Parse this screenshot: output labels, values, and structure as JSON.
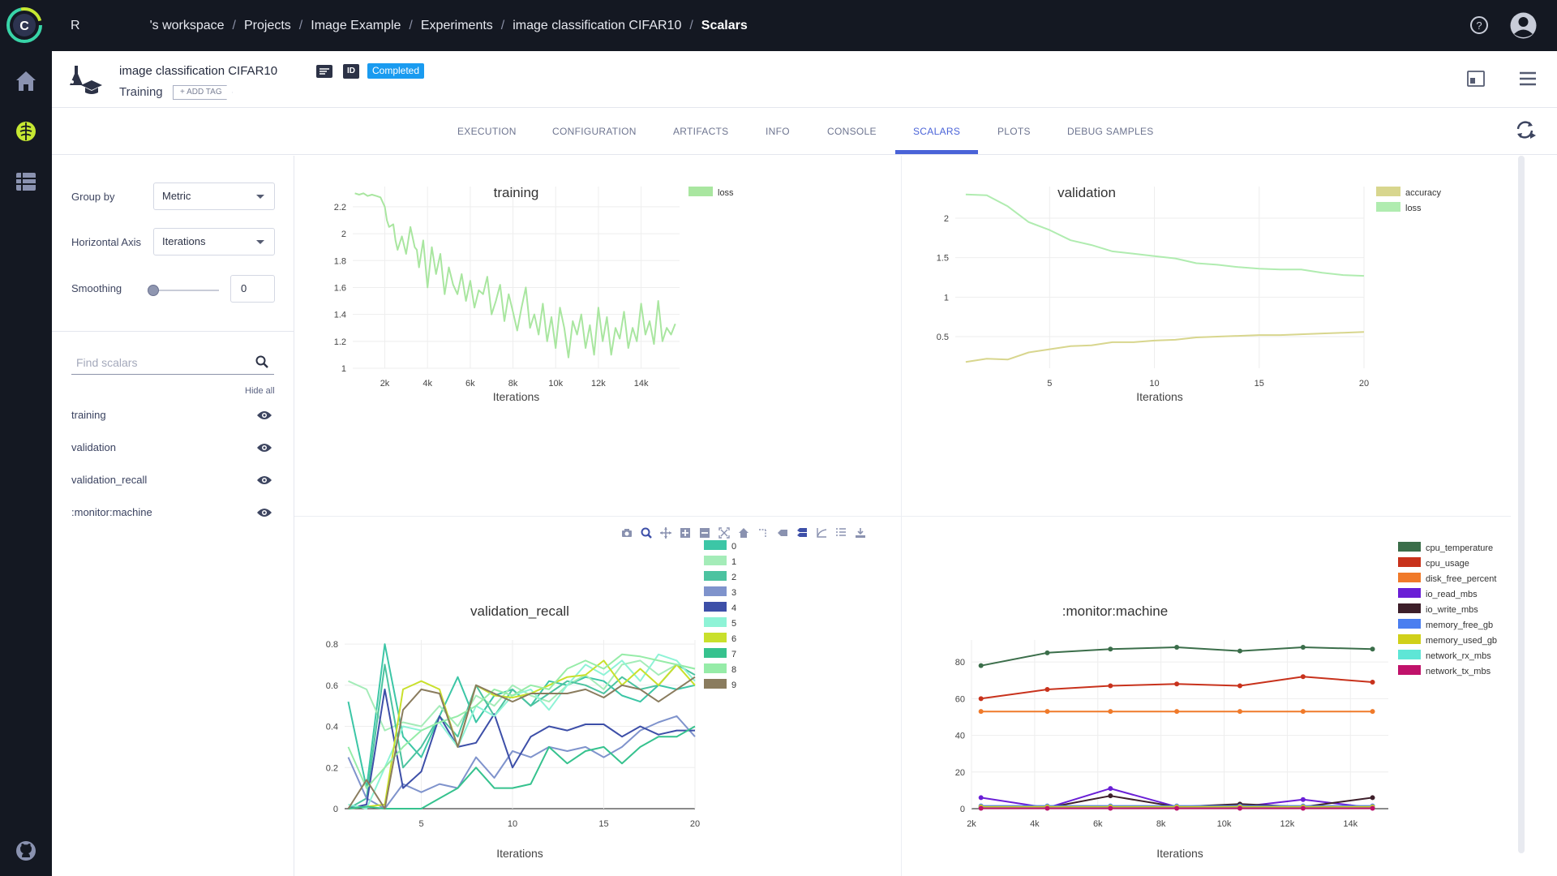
{
  "breadcrumb": {
    "workspace_initial": "R",
    "workspace": "'s workspace",
    "items": [
      "Projects",
      "Image Example",
      "Experiments",
      "image classification CIFAR10"
    ],
    "current": "Scalars"
  },
  "experiment": {
    "title": "image classification CIFAR10",
    "type": "Training",
    "add_tag": "+ ADD TAG",
    "id_label": "ID",
    "status": "Completed"
  },
  "tabs": [
    "EXECUTION",
    "CONFIGURATION",
    "ARTIFACTS",
    "INFO",
    "CONSOLE",
    "SCALARS",
    "PLOTS",
    "DEBUG SAMPLES"
  ],
  "active_tab": "SCALARS",
  "controls": {
    "group_by_label": "Group by",
    "group_by_value": "Metric",
    "horizontal_axis_label": "Horizontal Axis",
    "horizontal_axis_value": "Iterations",
    "smoothing_label": "Smoothing",
    "smoothing_value": "0",
    "smoothing_level": 0,
    "find_placeholder": "Find scalars",
    "hide_all": "Hide all",
    "scalars": [
      "training",
      "validation",
      "validation_recall",
      ":monitor:machine"
    ]
  },
  "colors": {
    "accent": "#4a63d8",
    "status": "#1a9bf0",
    "topbar": "#141822"
  },
  "chart_data": [
    {
      "name": "training",
      "type": "line",
      "title": "training",
      "xlabel": "Iterations",
      "ylabel": "",
      "xlim": [
        500,
        15800
      ],
      "ylim": [
        1,
        2.35
      ],
      "xticks": [
        2000,
        4000,
        6000,
        8000,
        10000,
        12000,
        14000
      ],
      "xticklabels": [
        "2k",
        "4k",
        "6k",
        "8k",
        "10k",
        "12k",
        "14k"
      ],
      "yticks": [
        1,
        1.2,
        1.4,
        1.6,
        1.8,
        2,
        2.2
      ],
      "yticklabels": [
        "1",
        "1.2",
        "1.4",
        "1.6",
        "1.8",
        "2",
        "2.2"
      ],
      "legend": "top-right",
      "series": [
        {
          "name": "loss",
          "color": "#a9e6a0",
          "x": [
            600,
            800,
            1000,
            1200,
            1400,
            1600,
            1800,
            2000,
            2100,
            2200,
            2400,
            2500,
            2600,
            2800,
            3000,
            3200,
            3400,
            3500,
            3600,
            3800,
            4000,
            4200,
            4400,
            4600,
            4800,
            5000,
            5200,
            5400,
            5600,
            5800,
            6000,
            6200,
            6400,
            6600,
            6800,
            7000,
            7200,
            7400,
            7600,
            7800,
            8000,
            8200,
            8400,
            8600,
            8800,
            9000,
            9200,
            9400,
            9600,
            9800,
            10000,
            10200,
            10400,
            10600,
            10800,
            11000,
            11200,
            11400,
            11600,
            11800,
            12000,
            12200,
            12400,
            12600,
            12800,
            13000,
            13200,
            13400,
            13600,
            13800,
            14000,
            14200,
            14400,
            14600,
            14800,
            15000,
            15200,
            15400,
            15600
          ],
          "y": [
            2.3,
            2.29,
            2.3,
            2.28,
            2.29,
            2.28,
            2.27,
            2.2,
            2.1,
            2.05,
            2.07,
            1.95,
            1.88,
            1.98,
            1.85,
            2.05,
            1.9,
            1.88,
            1.75,
            1.95,
            1.6,
            1.9,
            1.7,
            1.85,
            1.55,
            1.75,
            1.62,
            1.55,
            1.7,
            1.5,
            1.65,
            1.45,
            1.58,
            1.55,
            1.68,
            1.4,
            1.5,
            1.62,
            1.35,
            1.55,
            1.42,
            1.28,
            1.45,
            1.6,
            1.3,
            1.4,
            1.25,
            1.48,
            1.2,
            1.38,
            1.15,
            1.45,
            1.3,
            1.08,
            1.35,
            1.25,
            1.4,
            1.15,
            1.32,
            1.1,
            1.45,
            1.2,
            1.38,
            1.1,
            1.3,
            1.22,
            1.42,
            1.15,
            1.3,
            1.2,
            1.48,
            1.25,
            1.35,
            1.18,
            1.5,
            1.2,
            1.3,
            1.25,
            1.33
          ]
        }
      ]
    },
    {
      "name": "validation",
      "type": "line",
      "title": "validation",
      "xlabel": "Iterations",
      "ylabel": "",
      "xlim": [
        0.5,
        20
      ],
      "ylim": [
        0.1,
        2.4
      ],
      "xticks": [
        5,
        10,
        15,
        20
      ],
      "yticks": [
        0.5,
        1,
        1.5,
        2
      ],
      "legend": "top-right",
      "series": [
        {
          "name": "accuracy",
          "color": "#d8d68e",
          "x": [
            1,
            2,
            3,
            4,
            5,
            6,
            7,
            8,
            9,
            10,
            11,
            12,
            13,
            14,
            15,
            16,
            17,
            18,
            19,
            20
          ],
          "y": [
            0.18,
            0.22,
            0.21,
            0.3,
            0.34,
            0.38,
            0.39,
            0.43,
            0.43,
            0.45,
            0.46,
            0.49,
            0.5,
            0.51,
            0.52,
            0.52,
            0.53,
            0.54,
            0.55,
            0.56
          ]
        },
        {
          "name": "loss",
          "color": "#b0ecb0",
          "x": [
            1,
            2,
            3,
            4,
            5,
            6,
            7,
            8,
            9,
            10,
            11,
            12,
            13,
            14,
            15,
            16,
            17,
            18,
            19,
            20
          ],
          "y": [
            2.3,
            2.29,
            2.15,
            1.95,
            1.85,
            1.72,
            1.66,
            1.58,
            1.55,
            1.52,
            1.49,
            1.43,
            1.41,
            1.38,
            1.36,
            1.35,
            1.35,
            1.31,
            1.28,
            1.27
          ]
        }
      ]
    },
    {
      "name": "validation_recall",
      "type": "line",
      "title": "validation_recall",
      "xlabel": "Iterations",
      "ylabel": "",
      "xlim": [
        0.8,
        20
      ],
      "ylim": [
        0,
        0.82
      ],
      "xticks": [
        5,
        10,
        15,
        20
      ],
      "yticks": [
        0,
        0.2,
        0.4,
        0.6,
        0.8
      ],
      "legend": "right",
      "x": [
        1,
        2,
        3,
        4,
        5,
        6,
        7,
        8,
        9,
        10,
        11,
        12,
        13,
        14,
        15,
        16,
        17,
        18,
        19,
        20
      ],
      "series": [
        {
          "name": "0",
          "color": "#3cc6a6",
          "values": [
            0.52,
            0.1,
            0.8,
            0.35,
            0.25,
            0.45,
            0.64,
            0.42,
            0.55,
            0.58,
            0.5,
            0.62,
            0.6,
            0.64,
            0.62,
            0.55,
            0.52,
            0.6,
            0.58,
            0.6
          ]
        },
        {
          "name": "1",
          "color": "#a4ecb8",
          "values": [
            0.62,
            0.58,
            0.38,
            0.42,
            0.4,
            0.5,
            0.4,
            0.55,
            0.5,
            0.6,
            0.55,
            0.52,
            0.6,
            0.65,
            0.58,
            0.7,
            0.72,
            0.65,
            0.7,
            0.68
          ]
        },
        {
          "name": "2",
          "color": "#4cc3a0",
          "values": [
            0,
            0.05,
            0.7,
            0.2,
            0.3,
            0.45,
            0.35,
            0.6,
            0.45,
            0.58,
            0.5,
            0.56,
            0.62,
            0.6,
            0.56,
            0.64,
            0.58,
            0.6,
            0.7,
            0.65
          ]
        },
        {
          "name": "3",
          "color": "#7f93cc",
          "values": [
            0.25,
            0.05,
            0,
            0.12,
            0.08,
            0.12,
            0.1,
            0.25,
            0.15,
            0.28,
            0.25,
            0.3,
            0.28,
            0.3,
            0.25,
            0.3,
            0.38,
            0.42,
            0.45,
            0.35
          ]
        },
        {
          "name": "4",
          "color": "#3d4fa8",
          "values": [
            0,
            0.02,
            0.58,
            0.1,
            0.18,
            0.45,
            0.3,
            0.32,
            0.46,
            0.2,
            0.35,
            0.4,
            0.38,
            0.41,
            0.41,
            0.35,
            0.4,
            0.36,
            0.38,
            0.38
          ]
        },
        {
          "name": "5",
          "color": "#8ef3d6",
          "values": [
            0.02,
            0,
            0.2,
            0.4,
            0.38,
            0.42,
            0.3,
            0.5,
            0.45,
            0.55,
            0.58,
            0.48,
            0.6,
            0.7,
            0.65,
            0.72,
            0.62,
            0.75,
            0.72,
            0.62
          ]
        },
        {
          "name": "6",
          "color": "#c9e02c",
          "values": [
            0,
            0.01,
            0.02,
            0.58,
            0.62,
            0.58,
            0.3,
            0.6,
            0.55,
            0.54,
            0.56,
            0.6,
            0.64,
            0.65,
            0.72,
            0.6,
            0.68,
            0.6,
            0.7,
            0.6
          ]
        },
        {
          "name": "7",
          "color": "#36c28e",
          "values": [
            0,
            0.01,
            0,
            0,
            0,
            0.05,
            0.1,
            0.2,
            0.1,
            0.1,
            0.12,
            0.3,
            0.22,
            0.28,
            0.3,
            0.22,
            0.3,
            0.35,
            0.35,
            0.4
          ]
        },
        {
          "name": "8",
          "color": "#96eca8",
          "values": [
            0.3,
            0.1,
            0.2,
            0.3,
            0.38,
            0.42,
            0.45,
            0.5,
            0.58,
            0.55,
            0.6,
            0.58,
            0.68,
            0.72,
            0.68,
            0.75,
            0.74,
            0.72,
            0.7,
            0.68
          ]
        },
        {
          "name": "9",
          "color": "#8a7c5e",
          "values": [
            0,
            0.14,
            0,
            0.48,
            0.58,
            0.56,
            0.3,
            0.6,
            0.56,
            0.52,
            0.56,
            0.56,
            0.56,
            0.58,
            0.54,
            0.6,
            0.58,
            0.52,
            0.58,
            0.64
          ]
        }
      ]
    },
    {
      "name": ":monitor:machine",
      "type": "line",
      "title": ":monitor:machine",
      "xlabel": "Iterations",
      "ylabel": "",
      "xlim": [
        2000,
        15200
      ],
      "ylim": [
        0,
        92
      ],
      "xticks": [
        2000,
        4000,
        6000,
        8000,
        10000,
        12000,
        14000
      ],
      "xticklabels": [
        "2k",
        "4k",
        "6k",
        "8k",
        "10k",
        "12k",
        "14k"
      ],
      "yticks": [
        0,
        20,
        40,
        60,
        80
      ],
      "legend": "right",
      "x": [
        2300,
        4400,
        6400,
        8500,
        10500,
        12500,
        14700
      ],
      "series": [
        {
          "name": "cpu_temperature",
          "color": "#3b6e4a",
          "values": [
            78,
            85,
            87,
            88,
            86,
            88,
            87
          ]
        },
        {
          "name": "cpu_usage",
          "color": "#c8321c",
          "values": [
            60,
            65,
            67,
            68,
            67,
            72,
            69
          ]
        },
        {
          "name": "disk_free_percent",
          "color": "#f07a2a",
          "values": [
            53,
            53,
            53,
            53,
            53,
            53,
            53
          ]
        },
        {
          "name": "io_read_mbs",
          "color": "#6a1fd6",
          "values": [
            6,
            0.5,
            11,
            1,
            1,
            5,
            0.5
          ]
        },
        {
          "name": "io_write_mbs",
          "color": "#3d1f2a",
          "values": [
            0.5,
            0.5,
            7,
            1,
            2.5,
            1,
            6
          ]
        },
        {
          "name": "memory_free_gb",
          "color": "#4a7ef0",
          "values": [
            1.5,
            1.5,
            1.5,
            1.5,
            1.5,
            1.5,
            1.5
          ]
        },
        {
          "name": "memory_used_gb",
          "color": "#d0d01a",
          "values": [
            1,
            1,
            1,
            1,
            1,
            1,
            1
          ]
        },
        {
          "name": "network_rx_mbs",
          "color": "#5ee6d6",
          "values": [
            0.3,
            0.3,
            0.3,
            0.3,
            0.3,
            0.3,
            0.3
          ]
        },
        {
          "name": "network_tx_mbs",
          "color": "#c0126a",
          "values": [
            0.2,
            0.2,
            0.2,
            0.2,
            0.2,
            0.2,
            0.2
          ]
        }
      ]
    }
  ]
}
